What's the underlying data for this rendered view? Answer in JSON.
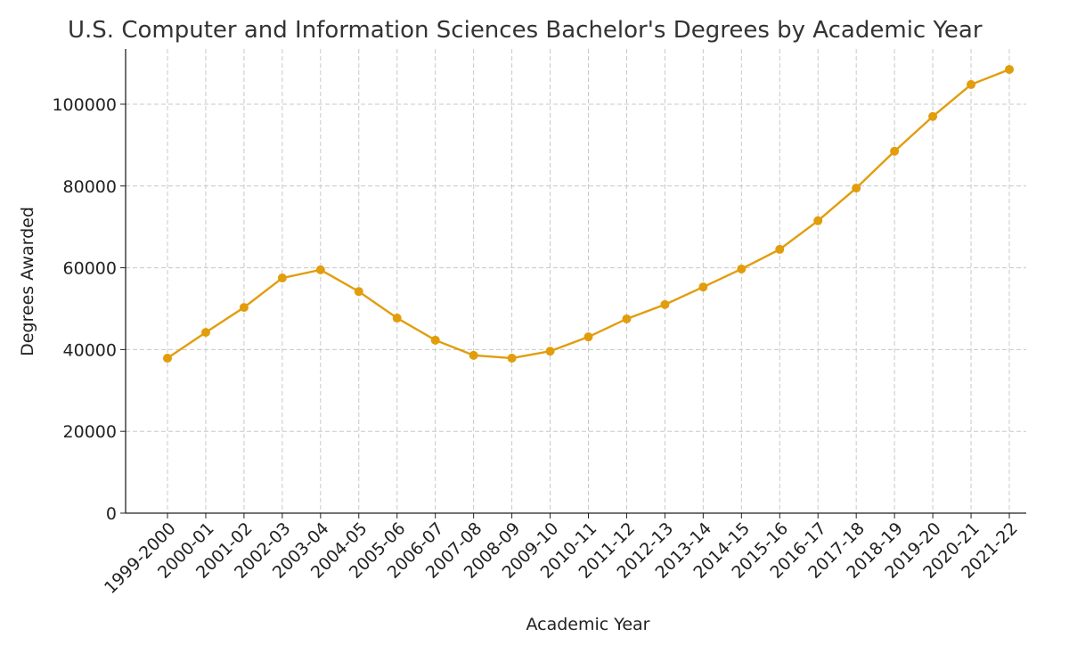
{
  "chart_data": {
    "type": "line",
    "title": "U.S. Computer and Information Sciences Bachelor's Degrees by Academic Year",
    "x_label": "Academic Year",
    "y_label": "Degrees Awarded",
    "categories": [
      "1999-2000",
      "2000-01",
      "2001-02",
      "2002-03",
      "2003-04",
      "2004-05",
      "2005-06",
      "2006-07",
      "2007-08",
      "2008-09",
      "2009-10",
      "2010-11",
      "2011-12",
      "2012-13",
      "2013-14",
      "2014-15",
      "2015-16",
      "2016-17",
      "2017-18",
      "2018-19",
      "2019-20",
      "2020-21",
      "2021-22"
    ],
    "series": [
      {
        "name": "Degrees Awarded",
        "color": "#e29d0c",
        "values": [
          37900,
          44200,
          50300,
          57500,
          59500,
          54200,
          47700,
          42300,
          38600,
          37900,
          39600,
          43100,
          47500,
          51000,
          55300,
          59700,
          64500,
          71500,
          79500,
          88500,
          97000,
          104800,
          108500
        ]
      }
    ],
    "ylim": [
      0,
      113500
    ],
    "yticks": [
      0,
      20000,
      40000,
      60000,
      80000,
      100000
    ],
    "grid": true
  }
}
